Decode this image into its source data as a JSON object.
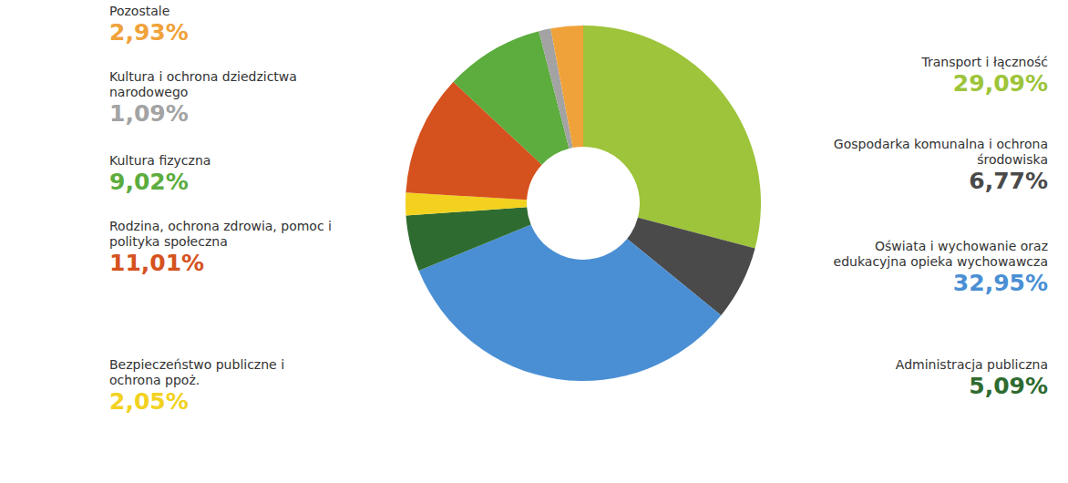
{
  "chart_data": {
    "type": "pie",
    "categories": [
      "Transport i łączność",
      "Gospodarka komunalna i ochrona środowiska",
      "Oświata i wychowanie oraz edukacyjna opieka wychowawcza",
      "Administracja publiczna",
      "Bezpieczeństwo publiczne i ochrona ppoż.",
      "Rodzina, ochrona zdrowia, pomoc i polityka społeczna",
      "Kultura fizyczna",
      "Kultura i ochrona dziedzictwa narodowego",
      "Pozostale"
    ],
    "values": [
      29.09,
      6.77,
      32.95,
      5.09,
      2.05,
      11.01,
      9.02,
      1.09,
      2.93
    ],
    "value_labels": [
      "29,09%",
      "6,77%",
      "32,95%",
      "5,09%",
      "2,05%",
      "11,01%",
      "9,02%",
      "1,09%",
      "2,93%"
    ],
    "colors": [
      "#9dc43a",
      "#4a4a4a",
      "#4a8fd4",
      "#2e6b30",
      "#f2d21f",
      "#d5521e",
      "#5cac3e",
      "#a3a3a3",
      "#f0a23a"
    ],
    "data_labels": true
  }
}
